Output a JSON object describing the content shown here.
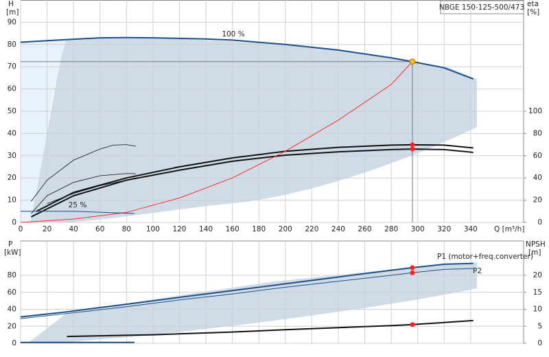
{
  "chart_data": [
    {
      "type": "line",
      "title": "NBGE 150-125-500/473",
      "y_label": "H",
      "y_unit": "[m]",
      "y2_label": "eta",
      "y2_unit": "[%]",
      "x_label": "Q [m³/h]",
      "xlim": [
        0,
        380
      ],
      "xticks": [
        0,
        20,
        40,
        60,
        80,
        100,
        120,
        140,
        160,
        180,
        200,
        220,
        240,
        260,
        280,
        300,
        320,
        340
      ],
      "ylim": [
        0,
        100
      ],
      "yticks": [
        0,
        10,
        20,
        30,
        40,
        50,
        60,
        70,
        80,
        90
      ],
      "y2lim": [
        0,
        200
      ],
      "y2ticks": [
        0,
        20,
        40,
        60,
        80,
        100
      ],
      "show_xtick_labels": true,
      "grid": true,
      "annotations": [
        "100 %",
        "25 %"
      ],
      "series": [
        {
          "color": "#1a4f8a",
          "width": 2,
          "x": [
            0,
            35,
            60,
            80,
            100,
            140,
            160,
            200,
            240,
            280,
            296,
            320,
            342
          ],
          "values": [
            81,
            82.2,
            83,
            83.1,
            83,
            82.5,
            82,
            80,
            77.5,
            74,
            72.3,
            69.5,
            64.5
          ]
        },
        {
          "color": "#111111",
          "width": 2,
          "axis": "y2",
          "x": [
            12,
            40,
            80,
            120,
            160,
            200,
            240,
            280,
            296,
            320,
            342
          ],
          "values": [
            10,
            27,
            40,
            50,
            58,
            64,
            67.5,
            69.5,
            69.8,
            69.5,
            67
          ]
        },
        {
          "color": "#111111",
          "width": 2,
          "axis": "y2",
          "x": [
            8,
            40,
            80,
            120,
            160,
            200,
            240,
            280,
            296,
            320,
            342
          ],
          "values": [
            5,
            24,
            38,
            47,
            55,
            60.5,
            63.5,
            65.5,
            66,
            65.5,
            63
          ]
        },
        {
          "color": "#111111",
          "width": 0.8,
          "axis": "y2",
          "x": [
            8,
            20,
            40,
            60,
            70,
            80,
            87
          ],
          "values": [
            19,
            38,
            56,
            66,
            69.5,
            70,
            68.5
          ]
        },
        {
          "color": "#111111",
          "width": 0.8,
          "axis": "y2",
          "x": [
            8,
            20,
            40,
            60,
            80,
            87
          ],
          "values": [
            8,
            24,
            36,
            42,
            44,
            43.8
          ]
        },
        {
          "color": "#111111",
          "width": 0.8,
          "axis": "y2",
          "x": [
            20,
            40,
            60,
            80,
            87
          ],
          "values": [
            17,
            26,
            33,
            38,
            40
          ]
        },
        {
          "color": "#ff2a2a",
          "width": 1,
          "x": [
            0,
            40,
            80,
            120,
            160,
            200,
            240,
            280,
            296
          ],
          "values": [
            0,
            1.5,
            4.5,
            11,
            20,
            32,
            46,
            62,
            72.3
          ]
        },
        {
          "color": "#1a4f8a",
          "width": 1,
          "x": [
            0,
            40,
            86
          ],
          "values": [
            5,
            5,
            4
          ]
        }
      ],
      "duty_point": {
        "x": 296,
        "y": 72.3,
        "color": "#ffc000"
      },
      "markers": [
        {
          "x": 296,
          "y": 69.8,
          "axis": "y2",
          "color": "#ff2020"
        },
        {
          "x": 296,
          "y": 66,
          "axis": "y2",
          "color": "#ff2020"
        }
      ]
    },
    {
      "type": "line",
      "y_label": "P",
      "y_unit": "[kW]",
      "y2_label": "NPSH",
      "y2_unit": "[m]",
      "xlim": [
        0,
        380
      ],
      "xticks": [
        0,
        20,
        40,
        60,
        80,
        100,
        120,
        140,
        160,
        180,
        200,
        220,
        240,
        260,
        280,
        300,
        320,
        340
      ],
      "ylim": [
        0,
        120
      ],
      "yticks": [
        0,
        20,
        40,
        60,
        80
      ],
      "y2lim": [
        0,
        30
      ],
      "y2ticks": [
        0,
        5,
        10,
        15,
        20
      ],
      "show_xtick_labels": false,
      "grid": true,
      "series": [
        {
          "name": "P1 (motor+freq.converter)",
          "color": "#1a4f8a",
          "width": 2,
          "x": [
            0,
            35,
            80,
            120,
            160,
            200,
            240,
            280,
            296,
            320,
            342
          ],
          "values": [
            31,
            37,
            46,
            54,
            62,
            70,
            78,
            86,
            89,
            93,
            94
          ]
        },
        {
          "name": "P2",
          "color": "#1a4f8a",
          "width": 1,
          "x": [
            0,
            35,
            80,
            120,
            160,
            200,
            240,
            280,
            296,
            320,
            342
          ],
          "values": [
            29,
            35,
            43,
            51,
            58,
            66,
            73,
            80,
            83,
            87,
            88
          ]
        },
        {
          "color": "#111111",
          "width": 2,
          "axis": "y2",
          "x": [
            35,
            100,
            160,
            200,
            240,
            280,
            296,
            320,
            342
          ],
          "values": [
            2,
            2.5,
            3.3,
            4,
            4.6,
            5.2,
            5.5,
            6.1,
            6.7
          ]
        },
        {
          "color": "#1a4f8a",
          "width": 2,
          "x": [
            0,
            86
          ],
          "values": [
            1,
            1
          ]
        }
      ],
      "markers": [
        {
          "x": 296,
          "y": 89,
          "color": "#ff2020"
        },
        {
          "x": 296,
          "y": 83,
          "color": "#ff2020"
        },
        {
          "x": 296,
          "y": 5.5,
          "axis": "y2",
          "color": "#ff2020"
        }
      ]
    }
  ]
}
